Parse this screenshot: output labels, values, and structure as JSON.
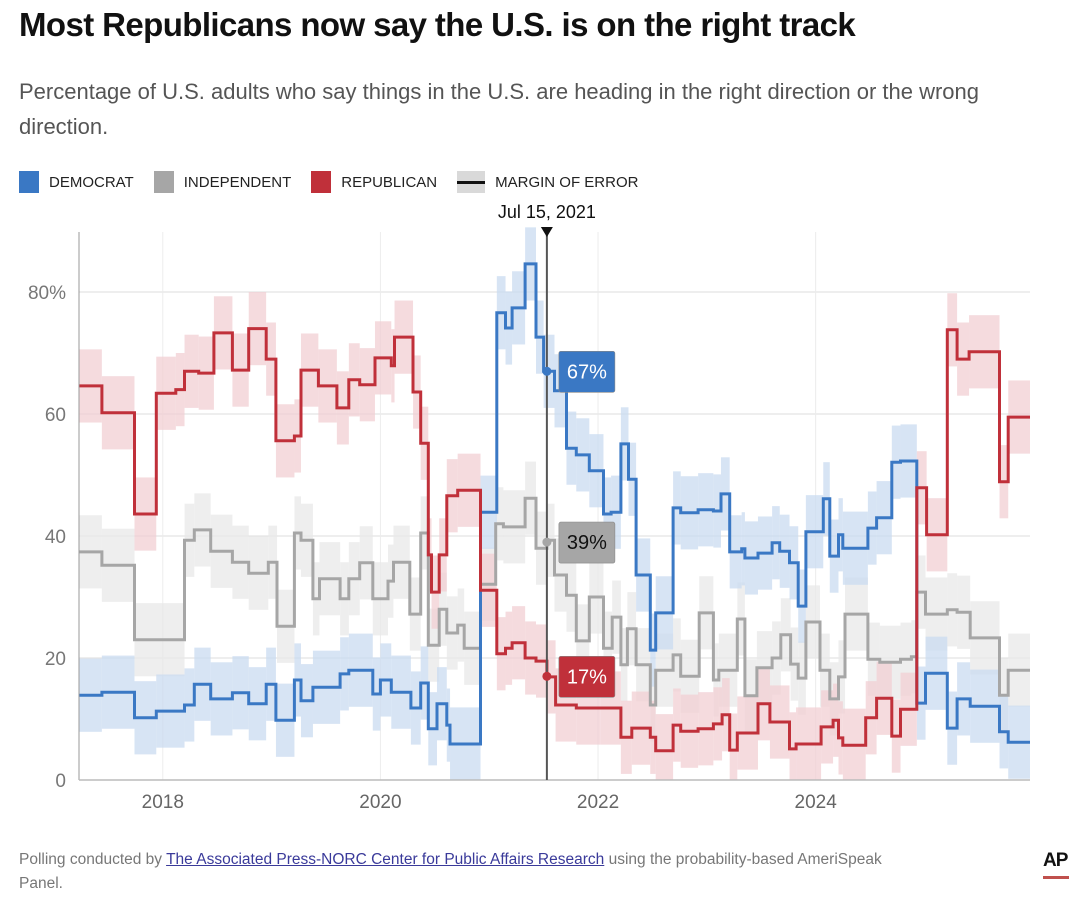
{
  "header": {
    "title": "Most Republicans now say the U.S. is on the right track",
    "subtitle": "Percentage of U.S. adults who say things in the U.S. are heading in the right direction or the wrong direction."
  },
  "legend": [
    {
      "label": "DEMOCRAT",
      "color": "#3a78c4"
    },
    {
      "label": "INDEPENDENT",
      "color": "#a6a6a6"
    },
    {
      "label": "REPUBLICAN",
      "color": "#c0303a"
    },
    {
      "label": "MARGIN OF ERROR",
      "color": "#d9d9d9"
    }
  ],
  "footer": {
    "prefix": "Polling conducted by ",
    "link_text": "The Associated Press-NORC Center for Public Affairs Research",
    "suffix": " using the probability-based AmeriSpeak Panel.",
    "logo": "AP"
  },
  "chart_data": {
    "type": "line",
    "step": true,
    "title": "Most Republicans now say the U.S. is on the right track",
    "xlabel": "",
    "ylabel": "",
    "xlim": [
      2017.23,
      2025.97
    ],
    "ylim": [
      0,
      90
    ],
    "x_ticks": [
      2018,
      2020,
      2022,
      2024
    ],
    "x_tick_labels": [
      "2018",
      "2020",
      "2022",
      "2024"
    ],
    "y_ticks": [
      0,
      20,
      40,
      60,
      80
    ],
    "y_tick_labels": [
      "0",
      "20",
      "40",
      "60",
      "80%"
    ],
    "grid": true,
    "legend_position": "top-left",
    "margin_of_error_pts": 6,
    "annotation": {
      "date_label": "Jul 15, 2021",
      "x": 2021.53,
      "values": [
        {
          "series": "Democrat",
          "label": "67%",
          "value": 67
        },
        {
          "series": "Independent",
          "label": "39%",
          "value": 39
        },
        {
          "series": "Republican",
          "label": "17%",
          "value": 17
        }
      ]
    },
    "series": [
      {
        "name": "Democrat",
        "color": "#3a78c4",
        "band_color": "#c9dbf0",
        "points": [
          [
            2017.23,
            13.9
          ],
          [
            2017.44,
            14.4
          ],
          [
            2017.74,
            10.2
          ],
          [
            2017.94,
            11.3
          ],
          [
            2018.2,
            12.3
          ],
          [
            2018.29,
            15.7
          ],
          [
            2018.44,
            13.3
          ],
          [
            2018.64,
            14.3
          ],
          [
            2018.79,
            12.5
          ],
          [
            2018.95,
            15.7
          ],
          [
            2019.04,
            9.8
          ],
          [
            2019.21,
            16.4
          ],
          [
            2019.27,
            13
          ],
          [
            2019.38,
            15.2
          ],
          [
            2019.63,
            17.4
          ],
          [
            2019.71,
            18
          ],
          [
            2019.93,
            14.1
          ],
          [
            2020.0,
            16.4
          ],
          [
            2020.1,
            14.4
          ],
          [
            2020.28,
            11.8
          ],
          [
            2020.37,
            15.9
          ],
          [
            2020.44,
            8.4
          ],
          [
            2020.52,
            12.5
          ],
          [
            2020.61,
            9
          ],
          [
            2020.64,
            5.9
          ],
          [
            2020.92,
            43.9
          ],
          [
            2021.07,
            76.6
          ],
          [
            2021.15,
            74.1
          ],
          [
            2021.21,
            77.4
          ],
          [
            2021.33,
            84.6
          ],
          [
            2021.43,
            72.6
          ],
          [
            2021.5,
            67
          ],
          [
            2021.6,
            63.8
          ],
          [
            2021.71,
            54.4
          ],
          [
            2021.8,
            53.3
          ],
          [
            2021.92,
            50.7
          ],
          [
            2022.05,
            43.6
          ],
          [
            2022.12,
            43.9
          ],
          [
            2022.21,
            55.1
          ],
          [
            2022.28,
            49.3
          ],
          [
            2022.35,
            33.6
          ],
          [
            2022.48,
            21.3
          ],
          [
            2022.53,
            27.4
          ],
          [
            2022.69,
            44.6
          ],
          [
            2022.76,
            43.8
          ],
          [
            2022.92,
            44.3
          ],
          [
            2023.06,
            44.1
          ],
          [
            2023.13,
            46.9
          ],
          [
            2023.21,
            37.4
          ],
          [
            2023.32,
            37.9
          ],
          [
            2023.35,
            36.4
          ],
          [
            2023.47,
            37.2
          ],
          [
            2023.6,
            38.9
          ],
          [
            2023.67,
            37.5
          ],
          [
            2023.76,
            35.6
          ],
          [
            2023.84,
            28.5
          ],
          [
            2023.91,
            40.7
          ],
          [
            2024.07,
            46.1
          ],
          [
            2024.13,
            36.7
          ],
          [
            2024.21,
            40.2
          ],
          [
            2024.25,
            38
          ],
          [
            2024.48,
            41.3
          ],
          [
            2024.56,
            43
          ],
          [
            2024.7,
            52.1
          ],
          [
            2024.78,
            52.3
          ],
          [
            2024.93,
            12.6
          ],
          [
            2025.01,
            17.5
          ],
          [
            2025.21,
            8.5
          ],
          [
            2025.3,
            13.3
          ],
          [
            2025.42,
            12.1
          ],
          [
            2025.69,
            7.9
          ],
          [
            2025.77,
            6.2
          ]
        ]
      },
      {
        "name": "Independent",
        "color": "#a6a6a6",
        "band_color": "#e8e8e8",
        "points": [
          [
            2017.23,
            37.4
          ],
          [
            2017.44,
            35.2
          ],
          [
            2017.74,
            23
          ],
          [
            2018.2,
            39.3
          ],
          [
            2018.29,
            41
          ],
          [
            2018.44,
            37.5
          ],
          [
            2018.64,
            35.7
          ],
          [
            2018.79,
            33.9
          ],
          [
            2018.97,
            35.7
          ],
          [
            2019.05,
            25.2
          ],
          [
            2019.21,
            40.5
          ],
          [
            2019.27,
            39.3
          ],
          [
            2019.38,
            29.7
          ],
          [
            2019.44,
            33
          ],
          [
            2019.63,
            29.7
          ],
          [
            2019.71,
            33
          ],
          [
            2019.81,
            35.6
          ],
          [
            2019.93,
            29.7
          ],
          [
            2020.07,
            32.6
          ],
          [
            2020.12,
            35.7
          ],
          [
            2020.27,
            27.2
          ],
          [
            2020.37,
            40.5
          ],
          [
            2020.44,
            22.1
          ],
          [
            2020.54,
            28
          ],
          [
            2020.61,
            24.1
          ],
          [
            2020.71,
            25.4
          ],
          [
            2020.77,
            21.6
          ],
          [
            2020.92,
            32.1
          ],
          [
            2021.06,
            42
          ],
          [
            2021.13,
            41.5
          ],
          [
            2021.33,
            46.2
          ],
          [
            2021.43,
            38
          ],
          [
            2021.53,
            39.3
          ],
          [
            2021.6,
            33.6
          ],
          [
            2021.71,
            30.3
          ],
          [
            2021.8,
            22.8
          ],
          [
            2021.92,
            30
          ],
          [
            2022.05,
            21.6
          ],
          [
            2022.13,
            26.7
          ],
          [
            2022.21,
            18.9
          ],
          [
            2022.27,
            24.8
          ],
          [
            2022.35,
            18.9
          ],
          [
            2022.48,
            12.3
          ],
          [
            2022.53,
            18
          ],
          [
            2022.69,
            20.5
          ],
          [
            2022.76,
            17
          ],
          [
            2022.93,
            27.4
          ],
          [
            2023.06,
            16.4
          ],
          [
            2023.11,
            18
          ],
          [
            2023.28,
            26.4
          ],
          [
            2023.35,
            13.8
          ],
          [
            2023.46,
            18.4
          ],
          [
            2023.6,
            20
          ],
          [
            2023.68,
            23.8
          ],
          [
            2023.77,
            19
          ],
          [
            2023.84,
            16.7
          ],
          [
            2023.91,
            25.9
          ],
          [
            2024.04,
            18
          ],
          [
            2024.13,
            13.3
          ],
          [
            2024.21,
            16.9
          ],
          [
            2024.27,
            27.2
          ],
          [
            2024.48,
            19.8
          ],
          [
            2024.59,
            19.3
          ],
          [
            2024.78,
            19.8
          ],
          [
            2024.88,
            20.2
          ],
          [
            2024.93,
            30.8
          ],
          [
            2025.01,
            27.2
          ],
          [
            2025.21,
            27.9
          ],
          [
            2025.3,
            27.5
          ],
          [
            2025.42,
            23.3
          ],
          [
            2025.69,
            13.9
          ],
          [
            2025.77,
            18
          ]
        ]
      },
      {
        "name": "Republican",
        "color": "#c0303a",
        "band_color": "#f2cfd3",
        "points": [
          [
            2017.23,
            64.6
          ],
          [
            2017.44,
            60.2
          ],
          [
            2017.74,
            43.6
          ],
          [
            2017.94,
            63.4
          ],
          [
            2018.12,
            64
          ],
          [
            2018.2,
            67
          ],
          [
            2018.33,
            66.7
          ],
          [
            2018.47,
            73.3
          ],
          [
            2018.64,
            67.2
          ],
          [
            2018.79,
            74
          ],
          [
            2018.95,
            69
          ],
          [
            2019.04,
            55.6
          ],
          [
            2019.21,
            56.4
          ],
          [
            2019.27,
            67.2
          ],
          [
            2019.43,
            64.6
          ],
          [
            2019.6,
            61
          ],
          [
            2019.71,
            65.6
          ],
          [
            2019.81,
            64.8
          ],
          [
            2019.95,
            69.2
          ],
          [
            2020.1,
            67.9
          ],
          [
            2020.13,
            72.6
          ],
          [
            2020.3,
            63.6
          ],
          [
            2020.37,
            55.2
          ],
          [
            2020.44,
            36.9
          ],
          [
            2020.47,
            30.8
          ],
          [
            2020.54,
            36.9
          ],
          [
            2020.61,
            46.6
          ],
          [
            2020.71,
            47.5
          ],
          [
            2020.92,
            31.1
          ],
          [
            2021.07,
            20.7
          ],
          [
            2021.15,
            21.6
          ],
          [
            2021.21,
            22.5
          ],
          [
            2021.33,
            20
          ],
          [
            2021.43,
            19.5
          ],
          [
            2021.53,
            16.9
          ],
          [
            2021.61,
            12.3
          ],
          [
            2021.8,
            11.8
          ],
          [
            2022.02,
            11.8
          ],
          [
            2022.21,
            7
          ],
          [
            2022.31,
            8.5
          ],
          [
            2022.48,
            7
          ],
          [
            2022.53,
            4.8
          ],
          [
            2022.69,
            9
          ],
          [
            2022.76,
            8
          ],
          [
            2022.92,
            8.4
          ],
          [
            2023.06,
            9.2
          ],
          [
            2023.14,
            10.7
          ],
          [
            2023.21,
            4.9
          ],
          [
            2023.28,
            7.7
          ],
          [
            2023.47,
            12.5
          ],
          [
            2023.58,
            9.5
          ],
          [
            2023.76,
            5.1
          ],
          [
            2023.82,
            5.9
          ],
          [
            2024.05,
            8.7
          ],
          [
            2024.16,
            9.8
          ],
          [
            2024.21,
            6.9
          ],
          [
            2024.25,
            5.7
          ],
          [
            2024.46,
            10.2
          ],
          [
            2024.56,
            13.4
          ],
          [
            2024.7,
            7.2
          ],
          [
            2024.78,
            11.6
          ],
          [
            2024.93,
            47.9
          ],
          [
            2025.02,
            40.2
          ],
          [
            2025.21,
            73.8
          ],
          [
            2025.3,
            69
          ],
          [
            2025.41,
            70.2
          ],
          [
            2025.69,
            48.9
          ],
          [
            2025.77,
            59.5
          ]
        ]
      }
    ]
  }
}
